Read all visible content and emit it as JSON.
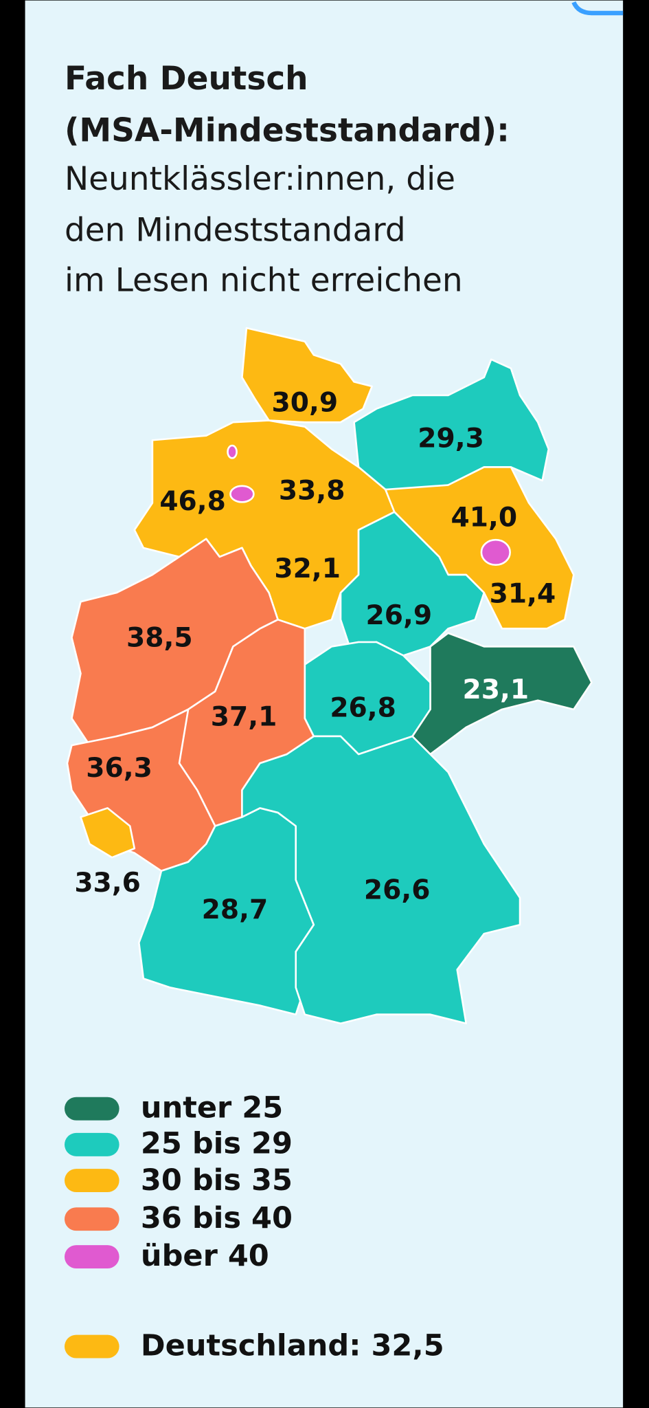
{
  "header": {
    "title_lines": [
      "Fach Deutsch",
      "(MSA-Mindeststandard):"
    ],
    "subtitle_lines": [
      "Neuntklässler:innen, die",
      "den Mindeststandard",
      "im Lesen nicht erreichen"
    ]
  },
  "map": {
    "regions": [
      {
        "label": "30,9",
        "color": "#fdb913"
      },
      {
        "label": "29,3",
        "color": "#1ecbbd"
      },
      {
        "label": "41,0",
        "color": "#e05ad0"
      },
      {
        "label": "46,8",
        "color": "#e05ad0"
      },
      {
        "label": "33,8",
        "color": "#fdb913"
      },
      {
        "label": "32,1",
        "color": "#fdb913"
      },
      {
        "label": "31,4",
        "color": "#fdb913"
      },
      {
        "label": "26,9",
        "color": "#1ecbbd"
      },
      {
        "label": "38,5",
        "color": "#f97b4f"
      },
      {
        "label": "23,1",
        "color": "#1f7a5c"
      },
      {
        "label": "37,1",
        "color": "#f97b4f"
      },
      {
        "label": "26,8",
        "color": "#1ecbbd"
      },
      {
        "label": "36,3",
        "color": "#f97b4f"
      },
      {
        "label": "33,6",
        "color": "#fdb913"
      },
      {
        "label": "28,7",
        "color": "#1ecbbd"
      },
      {
        "label": "26,6",
        "color": "#1ecbbd"
      }
    ]
  },
  "legend": {
    "items": [
      {
        "label": "unter 25",
        "color": "#1f7a5c"
      },
      {
        "label": "25 bis 29",
        "color": "#1ecbbd"
      },
      {
        "label": "30 bis 35",
        "color": "#fdb913"
      },
      {
        "label": "36 bis 40",
        "color": "#f97b4f"
      },
      {
        "label": "über 40",
        "color": "#e05ad0"
      }
    ],
    "national": {
      "label": "Deutschland: 32,5",
      "color": "#fdb913"
    }
  }
}
